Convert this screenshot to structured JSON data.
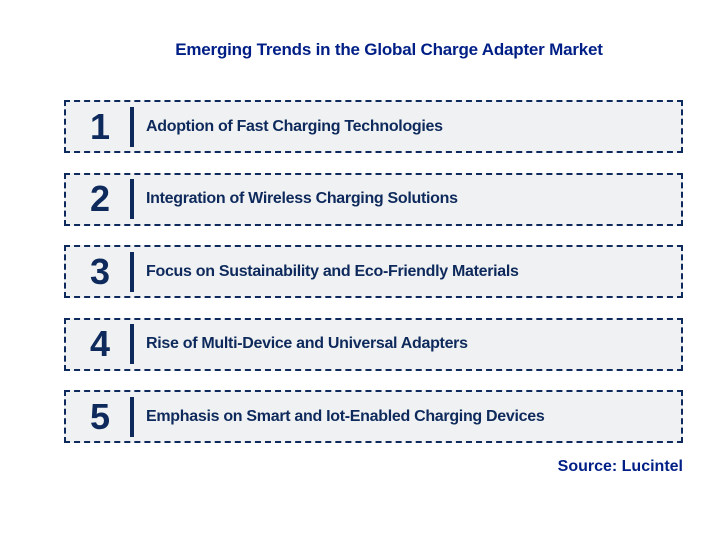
{
  "title": "Emerging Trends in the Global Charge Adapter Market",
  "items": [
    {
      "number": "1",
      "label": "Adoption of Fast Charging Technologies"
    },
    {
      "number": "2",
      "label": "Integration of Wireless Charging Solutions"
    },
    {
      "number": "3",
      "label": "Focus on Sustainability and Eco-Friendly Materials"
    },
    {
      "number": "4",
      "label": "Rise of Multi-Device and Universal Adapters"
    },
    {
      "number": "5",
      "label": "Emphasis on Smart and Iot-Enabled Charging Devices"
    }
  ],
  "source": "Source: Lucintel",
  "colors": {
    "title_text": "#001f86",
    "item_text": "#0e2a5c",
    "box_border": "#0e2a5c",
    "box_background": "#f0f1f2",
    "source_text": "#001f86"
  }
}
